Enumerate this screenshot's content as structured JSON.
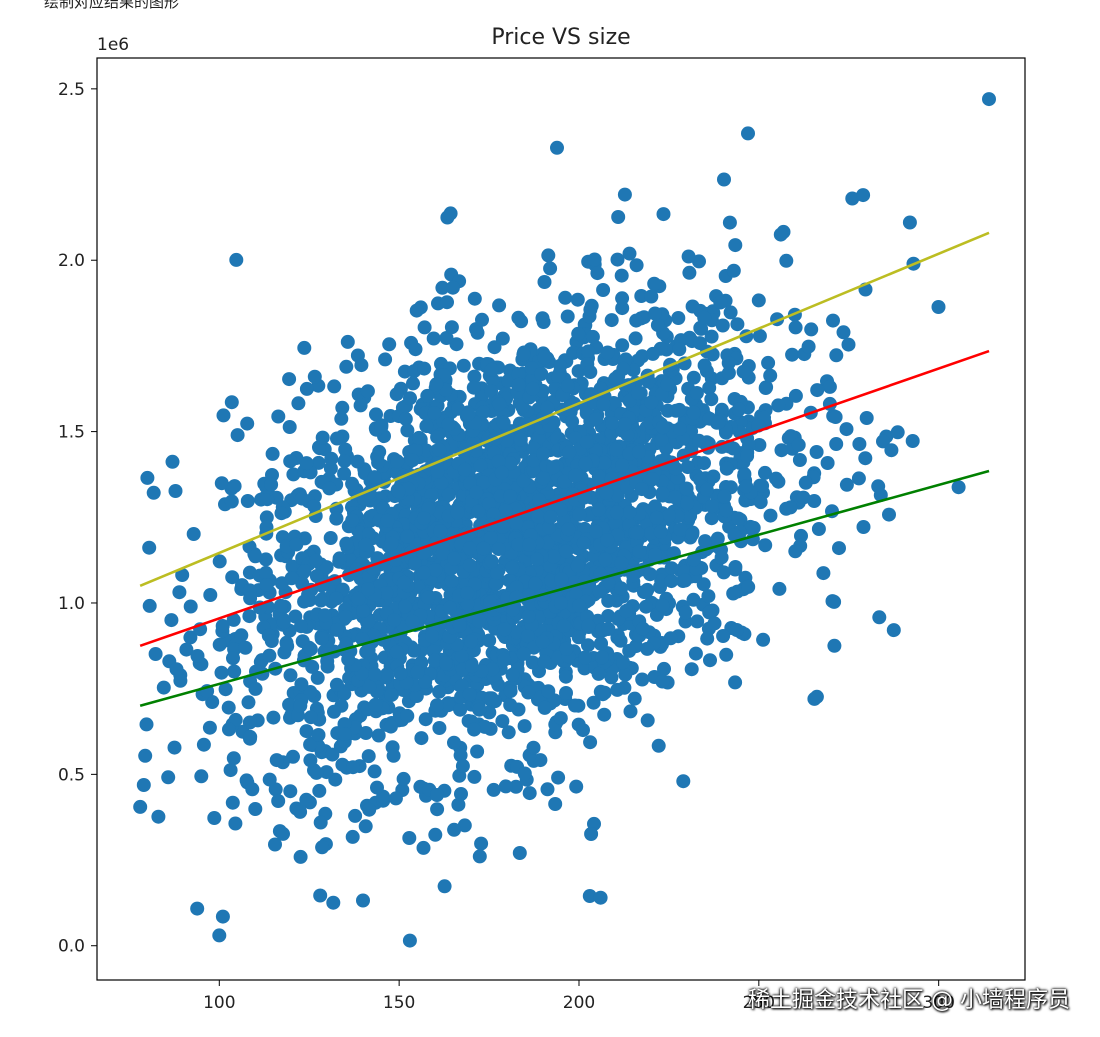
{
  "page": {
    "top_caption": "绘制对应结果的图形",
    "watermark": "稀土掘金技术社区 @ 小墙程序员"
  },
  "chart_data": {
    "type": "scatter",
    "title": "Price VS size",
    "xlabel": "",
    "ylabel": "",
    "y_offset_text": "1e6",
    "xlim": [
      66,
      324
    ],
    "ylim": [
      -0.1,
      2.59
    ],
    "x_ticks": [
      100,
      150,
      200,
      250,
      300
    ],
    "y_ticks": [
      0.0,
      0.5,
      1.0,
      1.5,
      2.0,
      2.5
    ],
    "y_unit_multiplier": 1000000,
    "grid": false,
    "scatter": {
      "color": "#1f77b4",
      "approx_point_count": 3000,
      "x_mean": 180,
      "x_sd": 38,
      "y_mean": 1.19,
      "y_sd": 0.33,
      "x_range": [
        78,
        314
      ],
      "outliers": [
        {
          "x": 314,
          "y": 2.47
        },
        {
          "x": 153,
          "y": 0.015
        },
        {
          "x": 100,
          "y": 0.03
        },
        {
          "x": 101,
          "y": 0.085
        },
        {
          "x": 78,
          "y": 0.405
        },
        {
          "x": 80,
          "y": 1.365
        },
        {
          "x": 247,
          "y": 2.37
        },
        {
          "x": 203,
          "y": 0.145
        },
        {
          "x": 206,
          "y": 0.14
        },
        {
          "x": 292,
          "y": 2.11
        },
        {
          "x": 293,
          "y": 1.99
        },
        {
          "x": 276,
          "y": 2.18
        },
        {
          "x": 279,
          "y": 2.19
        },
        {
          "x": 229,
          "y": 0.48
        },
        {
          "x": 271,
          "y": 0.875
        }
      ]
    },
    "series": [
      {
        "color": "#bcbd22",
        "x": [
          78,
          314
        ],
        "y": [
          1.05,
          2.08
        ]
      },
      {
        "color": "#ff0000",
        "x": [
          78,
          314
        ],
        "y": [
          0.875,
          1.735
        ]
      },
      {
        "color": "#008000",
        "x": [
          78,
          314
        ],
        "y": [
          0.7,
          1.385
        ]
      }
    ]
  }
}
